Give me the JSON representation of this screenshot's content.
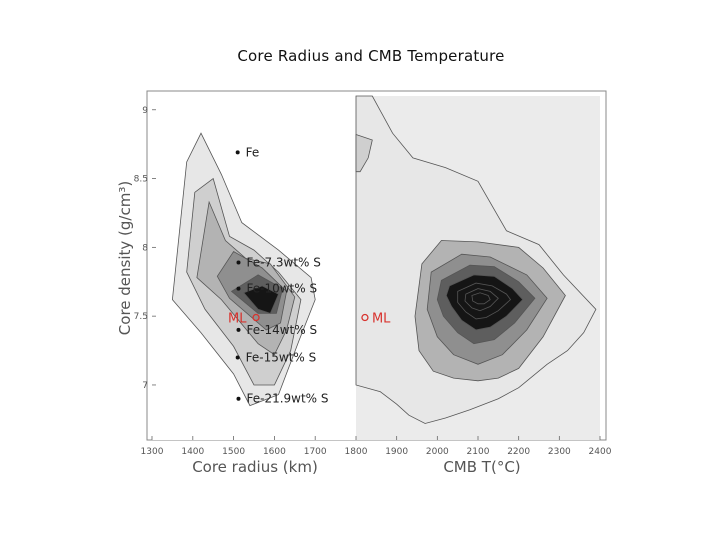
{
  "slide": {
    "title": "Core Radius and CMB Temperature"
  },
  "colors": {
    "plot_bg": "#ebebeb",
    "contour_edge": "#555555",
    "levels": [
      "#e7e7e7",
      "#cfcfcf",
      "#b3b3b3",
      "#8f8f8f",
      "#5e5e5e",
      "#151515"
    ],
    "marker": "#111111",
    "ml": "#d8332e",
    "frame": "#888888"
  },
  "chart_data": [
    {
      "type": "scatter",
      "subtype": "filled-contour",
      "title": "",
      "xlabel": "Core radius (km)",
      "ylabel": "Core density (g/cm³)",
      "xlim": [
        1300,
        1800
      ],
      "ylim": [
        6.6,
        9.1
      ],
      "xticks": [
        1300,
        1400,
        1500,
        1600,
        1700
      ],
      "xtick_labels": [
        "1300",
        "1400",
        "1500",
        "1600",
        "1700"
      ],
      "yticks": [
        7,
        7.5,
        8,
        8.5,
        9
      ],
      "ytick_labels": [
        "7",
        "7.5",
        "8",
        "8.5",
        "9"
      ],
      "grid": false,
      "contour_levels": [
        [
          [
            1350,
            7.62
          ],
          [
            1385,
            8.62
          ],
          [
            1420,
            8.83
          ],
          [
            1470,
            8.53
          ],
          [
            1520,
            8.18
          ],
          [
            1610,
            7.98
          ],
          [
            1690,
            7.78
          ],
          [
            1700,
            7.62
          ],
          [
            1660,
            7.32
          ],
          [
            1610,
            6.93
          ],
          [
            1540,
            6.85
          ],
          [
            1500,
            7.08
          ],
          [
            1420,
            7.38
          ]
        ],
        [
          [
            1385,
            7.82
          ],
          [
            1405,
            8.4
          ],
          [
            1450,
            8.5
          ],
          [
            1490,
            8.08
          ],
          [
            1550,
            7.98
          ],
          [
            1610,
            7.82
          ],
          [
            1665,
            7.62
          ],
          [
            1640,
            7.25
          ],
          [
            1600,
            7.0
          ],
          [
            1550,
            7.0
          ],
          [
            1500,
            7.28
          ],
          [
            1430,
            7.55
          ]
        ],
        [
          [
            1410,
            7.78
          ],
          [
            1440,
            8.33
          ],
          [
            1480,
            8.05
          ],
          [
            1530,
            7.92
          ],
          [
            1590,
            7.88
          ],
          [
            1650,
            7.64
          ],
          [
            1630,
            7.4
          ],
          [
            1600,
            7.22
          ],
          [
            1560,
            7.3
          ],
          [
            1470,
            7.62
          ]
        ],
        [
          [
            1460,
            7.79
          ],
          [
            1500,
            7.97
          ],
          [
            1570,
            7.85
          ],
          [
            1630,
            7.68
          ],
          [
            1615,
            7.45
          ],
          [
            1580,
            7.4
          ],
          [
            1490,
            7.63
          ]
        ],
        [
          [
            1495,
            7.68
          ],
          [
            1560,
            7.8
          ],
          [
            1620,
            7.7
          ],
          [
            1605,
            7.52
          ],
          [
            1560,
            7.52
          ]
        ],
        [
          [
            1525,
            7.67
          ],
          [
            1570,
            7.72
          ],
          [
            1610,
            7.66
          ],
          [
            1590,
            7.52
          ],
          [
            1560,
            7.55
          ]
        ]
      ],
      "markers": [
        {
          "label": "Fe",
          "x": 1510,
          "y": 8.69
        },
        {
          "label": "Fe-7.3wt% S",
          "x": 1512,
          "y": 7.89
        },
        {
          "label": "Fe-10wt% S",
          "x": 1512,
          "y": 7.7
        },
        {
          "label": "Fe-14wt% S",
          "x": 1512,
          "y": 7.4
        },
        {
          "label": "Fe-15wt% S",
          "x": 1510,
          "y": 7.2
        },
        {
          "label": "Fe-21.9wt% S",
          "x": 1512,
          "y": 6.9
        }
      ],
      "ml_point": {
        "label": "ML",
        "x": 1555,
        "y": 7.49
      }
    },
    {
      "type": "scatter",
      "subtype": "filled-contour",
      "title": "",
      "xlabel": "CMB T(°C)",
      "ylabel": "",
      "xlim": [
        1800,
        2400
      ],
      "ylim": [
        6.6,
        9.1
      ],
      "xticks": [
        1800,
        1900,
        2000,
        2100,
        2200,
        2300,
        2400
      ],
      "xtick_labels": [
        "1800",
        "1900",
        "2000",
        "2100",
        "2200",
        "2300",
        "2400"
      ],
      "grid": false,
      "contour_levels": [
        [
          [
            1800,
            9.1
          ],
          [
            1840,
            9.1
          ],
          [
            1890,
            8.83
          ],
          [
            1940,
            8.65
          ],
          [
            2020,
            8.58
          ],
          [
            2100,
            8.48
          ],
          [
            2170,
            8.12
          ],
          [
            2250,
            8.02
          ],
          [
            2310,
            7.8
          ],
          [
            2390,
            7.55
          ],
          [
            2360,
            7.38
          ],
          [
            2320,
            7.25
          ],
          [
            2270,
            7.15
          ],
          [
            2200,
            6.98
          ],
          [
            2150,
            6.9
          ],
          [
            2080,
            6.82
          ],
          [
            2020,
            6.76
          ],
          [
            1970,
            6.72
          ],
          [
            1930,
            6.78
          ],
          [
            1900,
            6.86
          ],
          [
            1860,
            6.95
          ],
          [
            1800,
            7.0
          ]
        ],
        [
          [
            1800,
            8.82
          ],
          [
            1840,
            8.78
          ],
          [
            1830,
            8.65
          ],
          [
            1810,
            8.55
          ],
          [
            1800,
            8.55
          ]
        ],
        [
          [
            1962,
            7.88
          ],
          [
            2010,
            8.05
          ],
          [
            2100,
            8.04
          ],
          [
            2200,
            8.0
          ],
          [
            2260,
            7.85
          ],
          [
            2315,
            7.65
          ],
          [
            2260,
            7.35
          ],
          [
            2200,
            7.12
          ],
          [
            2150,
            7.05
          ],
          [
            2100,
            7.03
          ],
          [
            2040,
            7.05
          ],
          [
            1990,
            7.1
          ],
          [
            1955,
            7.25
          ],
          [
            1945,
            7.5
          ]
        ],
        [
          [
            1985,
            7.82
          ],
          [
            2060,
            7.95
          ],
          [
            2130,
            7.93
          ],
          [
            2220,
            7.8
          ],
          [
            2270,
            7.63
          ],
          [
            2220,
            7.4
          ],
          [
            2160,
            7.22
          ],
          [
            2100,
            7.15
          ],
          [
            2040,
            7.22
          ],
          [
            2000,
            7.35
          ],
          [
            1975,
            7.55
          ]
        ],
        [
          [
            2010,
            7.76
          ],
          [
            2080,
            7.87
          ],
          [
            2140,
            7.86
          ],
          [
            2200,
            7.75
          ],
          [
            2240,
            7.63
          ],
          [
            2190,
            7.45
          ],
          [
            2140,
            7.33
          ],
          [
            2090,
            7.3
          ],
          [
            2050,
            7.38
          ],
          [
            2015,
            7.5
          ],
          [
            2000,
            7.62
          ]
        ],
        [
          [
            2030,
            7.72
          ],
          [
            2090,
            7.8
          ],
          [
            2140,
            7.79
          ],
          [
            2185,
            7.7
          ],
          [
            2210,
            7.62
          ],
          [
            2170,
            7.5
          ],
          [
            2130,
            7.42
          ],
          [
            2095,
            7.4
          ],
          [
            2060,
            7.47
          ],
          [
            2035,
            7.57
          ],
          [
            2022,
            7.65
          ]
        ],
        [
          [
            2050,
            7.68
          ],
          [
            2095,
            7.74
          ],
          [
            2135,
            7.72
          ],
          [
            2170,
            7.66
          ],
          [
            2180,
            7.62
          ],
          [
            2150,
            7.54
          ],
          [
            2120,
            7.49
          ],
          [
            2095,
            7.48
          ],
          [
            2070,
            7.53
          ],
          [
            2050,
            7.6
          ]
        ],
        [
          [
            2070,
            7.66
          ],
          [
            2100,
            7.7
          ],
          [
            2130,
            7.68
          ],
          [
            2150,
            7.63
          ],
          [
            2130,
            7.57
          ],
          [
            2105,
            7.54
          ],
          [
            2085,
            7.56
          ],
          [
            2068,
            7.61
          ]
        ],
        [
          [
            2085,
            7.65
          ],
          [
            2105,
            7.67
          ],
          [
            2125,
            7.65
          ],
          [
            2130,
            7.62
          ],
          [
            2115,
            7.59
          ],
          [
            2100,
            7.59
          ],
          [
            2087,
            7.61
          ]
        ]
      ],
      "ml_point": {
        "label": "ML",
        "x": 1822,
        "y": 7.49
      }
    }
  ]
}
